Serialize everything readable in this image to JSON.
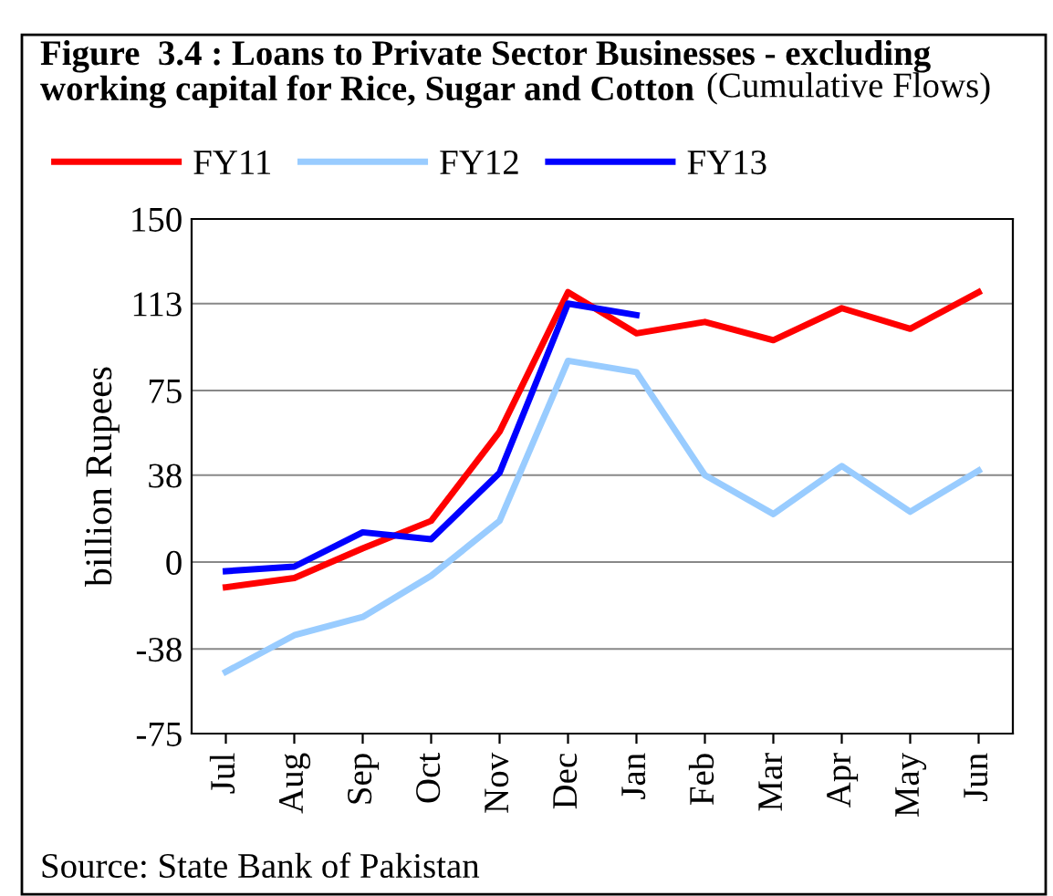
{
  "chart_data": {
    "type": "line",
    "title": "Figure  3.4 : Loans to Private Sector Businesses - excluding\nworking capital for Rice, Sugar and Cotton",
    "subtitle": "(Cumulative Flows)",
    "ylabel": "billion Rupees",
    "annotations": [
      "Source: State Bank of Pakistan"
    ],
    "categories": [
      "Jul",
      "Aug",
      "Sep",
      "Oct",
      "Nov",
      "Dec",
      "Jan",
      "Feb",
      "Mar",
      "Apr",
      "May",
      "Jun"
    ],
    "series": [
      {
        "name": "FY11",
        "color": "#ff0000",
        "values": [
          -11,
          -7,
          6,
          18,
          57,
          118,
          100,
          105,
          97,
          111,
          102,
          118
        ]
      },
      {
        "name": "FY12",
        "color": "#99ccff",
        "values": [
          -48,
          -32,
          -24,
          -6,
          18,
          88,
          83,
          38,
          21,
          42,
          22,
          40
        ]
      },
      {
        "name": "FY13",
        "color": "#0000ff",
        "values": [
          -4,
          -2,
          13,
          10,
          39,
          113,
          108,
          null,
          null,
          null,
          null,
          null
        ]
      }
    ],
    "ylim": [
      -75,
      150
    ],
    "yticks": [
      -75,
      -38,
      0,
      38,
      75,
      113,
      150
    ],
    "grid": "y",
    "legend": "top left",
    "marker": "none",
    "line_style": "solid"
  }
}
